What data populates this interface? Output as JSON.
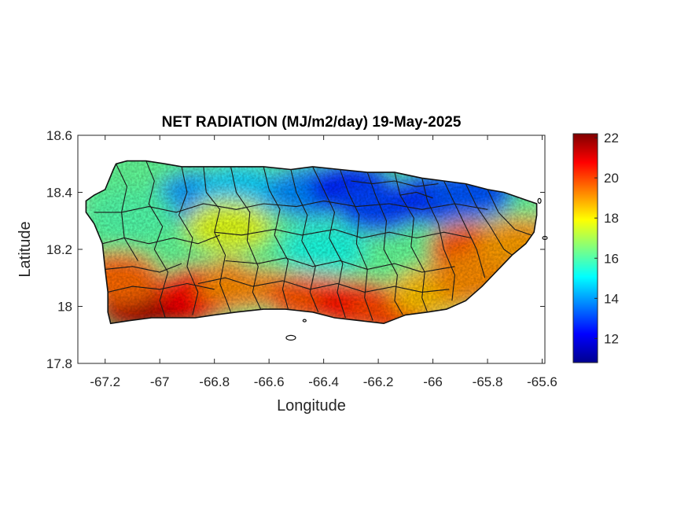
{
  "chart_data": {
    "type": "heatmap",
    "title": "NET RADIATION (MJ/m2/day) 19-May-2025",
    "xlabel": "Longitude",
    "ylabel": "Latitude",
    "xlim": [
      -67.3,
      -65.59
    ],
    "ylim": [
      17.8,
      18.6
    ],
    "x_ticks": [
      "-67.2",
      "-67",
      "-66.8",
      "-66.6",
      "-66.4",
      "-66.2",
      "-66",
      "-65.8",
      "-65.6"
    ],
    "y_ticks": [
      "18.6",
      "18.4",
      "18.2",
      "18"
    ],
    "y_tick_bottom": "17.8",
    "colorbar": {
      "colormap": "jet",
      "range": [
        10.8,
        22.2
      ],
      "ticks": [
        "22",
        "20",
        "18",
        "16",
        "14",
        "12"
      ],
      "tick_values": [
        22,
        20,
        18,
        16,
        14,
        12
      ]
    },
    "field_description": "Net radiation over Puerto Rico with municipal boundaries; higher values along the south coast and parts of the east, lower values in the north-central and northeast.",
    "regions": [
      {
        "lon": -67.08,
        "lat": 17.99,
        "value": 21.6
      },
      {
        "lon": -66.95,
        "lat": 18.0,
        "value": 21.8
      },
      {
        "lon": -66.85,
        "lat": 18.05,
        "value": 20.8
      },
      {
        "lon": -67.15,
        "lat": 18.1,
        "value": 19.6
      },
      {
        "lon": -66.7,
        "lat": 18.08,
        "value": 19.2
      },
      {
        "lon": -66.45,
        "lat": 18.03,
        "value": 19.8
      },
      {
        "lon": -66.28,
        "lat": 18.0,
        "value": 20.6
      },
      {
        "lon": -66.15,
        "lat": 17.98,
        "value": 20.0
      },
      {
        "lon": -66.0,
        "lat": 18.05,
        "value": 18.6
      },
      {
        "lon": -65.86,
        "lat": 18.2,
        "value": 19.8
      },
      {
        "lon": -65.85,
        "lat": 18.1,
        "value": 19.2
      },
      {
        "lon": -65.68,
        "lat": 18.22,
        "value": 19.0
      },
      {
        "lon": -66.86,
        "lat": 18.38,
        "value": 14.0
      },
      {
        "lon": -66.7,
        "lat": 18.4,
        "value": 14.6
      },
      {
        "lon": -66.45,
        "lat": 18.4,
        "value": 13.8
      },
      {
        "lon": -66.3,
        "lat": 18.42,
        "value": 12.6
      },
      {
        "lon": -66.2,
        "lat": 18.35,
        "value": 13.0
      },
      {
        "lon": -66.0,
        "lat": 18.38,
        "value": 12.8
      },
      {
        "lon": -65.86,
        "lat": 18.4,
        "value": 13.2
      },
      {
        "lon": -66.6,
        "lat": 18.22,
        "value": 16.2
      },
      {
        "lon": -66.4,
        "lat": 18.2,
        "value": 15.4
      },
      {
        "lon": -67.1,
        "lat": 18.32,
        "value": 16.0
      },
      {
        "lon": -66.75,
        "lat": 18.28,
        "value": 17.6
      }
    ]
  }
}
